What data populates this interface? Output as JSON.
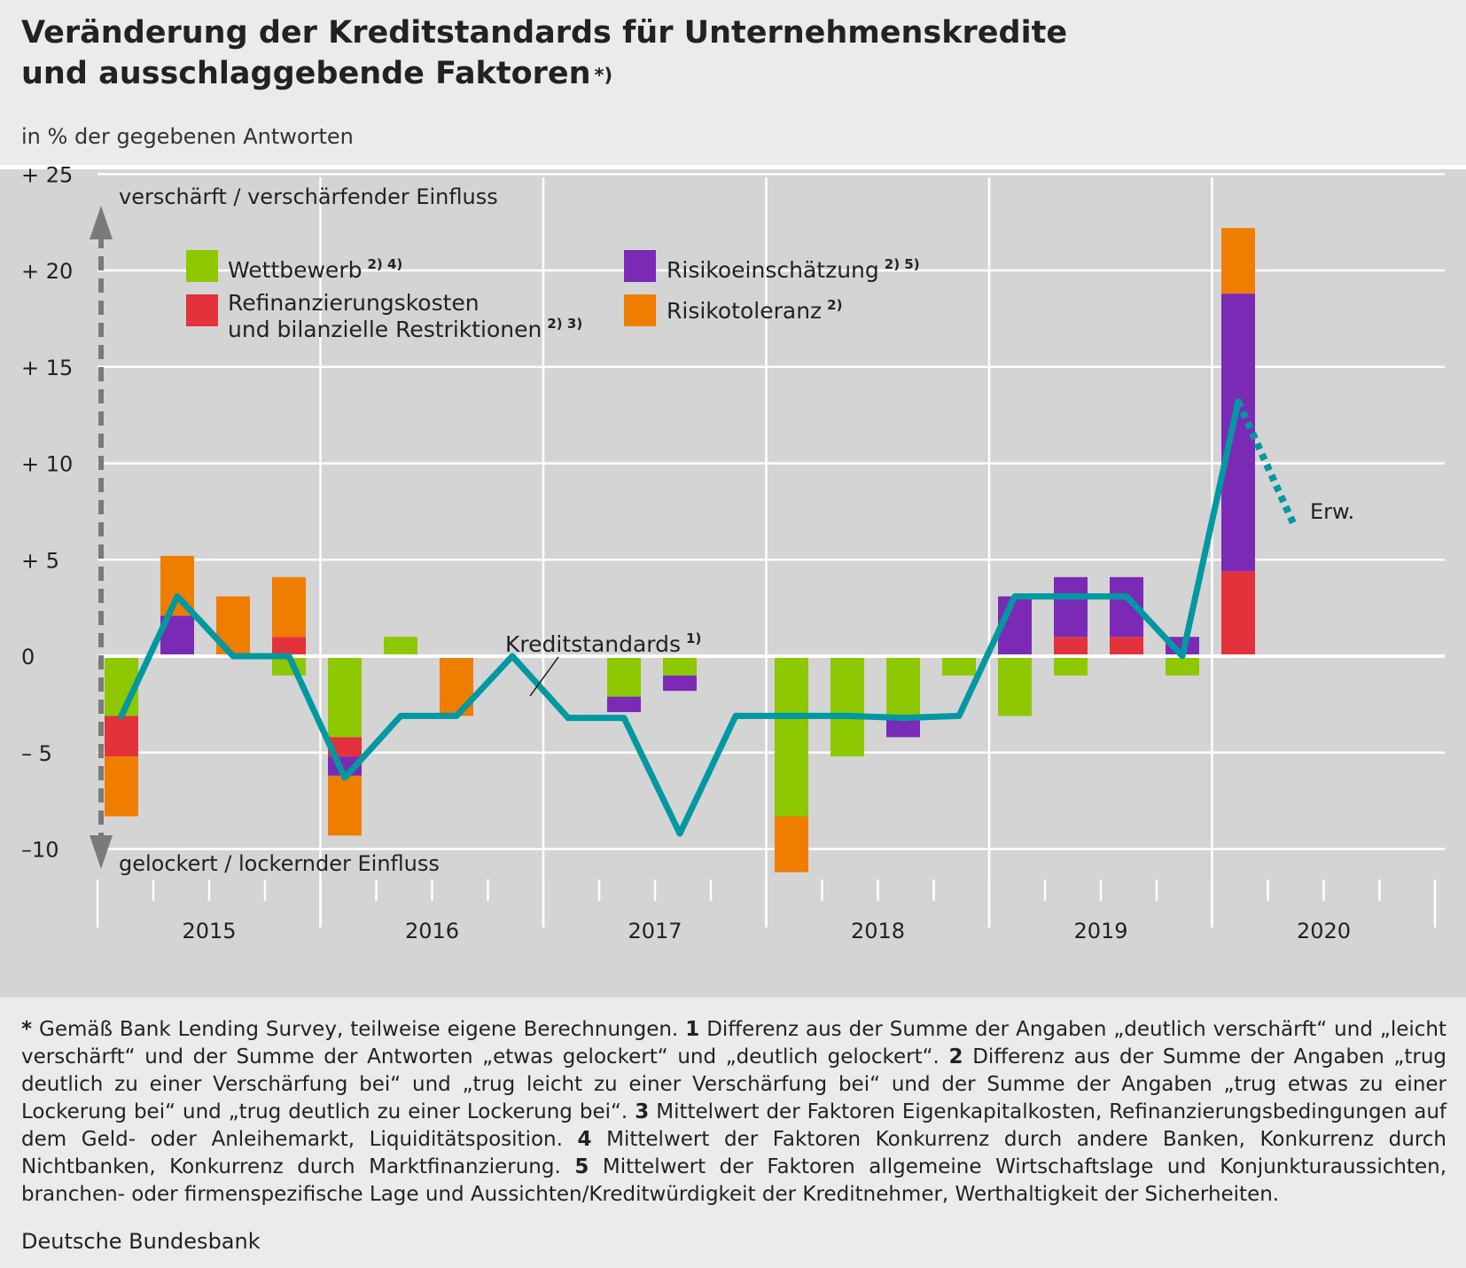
{
  "header": {
    "title_line1": "Veränderung der Kreditstandards für Unternehmenskredite",
    "title_line2": "und ausschlaggebende Faktoren",
    "title_mark": "*)",
    "subtitle": "in % der gegebenen Antworten"
  },
  "chart_data": {
    "type": "bar",
    "title": "Veränderung der Kreditstandards für Unternehmenskredite und ausschlaggebende Faktoren",
    "ylabel": "in % der gegebenen Antworten",
    "ylim": [
      -10,
      25
    ],
    "yticks": [
      25,
      20,
      15,
      10,
      5,
      0,
      -5,
      -10
    ],
    "ytick_labels": [
      "+ 25",
      "+ 20",
      "+ 15",
      "+ 10",
      "+  5",
      "0",
      "–  5",
      "–10"
    ],
    "grid": true,
    "direction_labels": {
      "up": "verschärft / verschärfender Einfluss",
      "down": "gelockert / lockernder Einfluss"
    },
    "year_labels": [
      "2015",
      "2016",
      "2017",
      "2018",
      "2019",
      "2020"
    ],
    "legend_placement": "top-left",
    "quarters": [
      "2015 Q1",
      "2015 Q2",
      "2015 Q3",
      "2015 Q4",
      "2016 Q1",
      "2016 Q2",
      "2016 Q3",
      "2016 Q4",
      "2017 Q1",
      "2017 Q2",
      "2017 Q3",
      "2017 Q4",
      "2018 Q1",
      "2018 Q2",
      "2018 Q3",
      "2018 Q4",
      "2019 Q1",
      "2019 Q2",
      "2019 Q3",
      "2019 Q4",
      "2020 Q1",
      "2020 Q2"
    ],
    "series": [
      {
        "name": "Wettbewerb",
        "sup": "2) 4)",
        "color": "#8dc800",
        "values": [
          -3.1,
          0,
          0,
          -1.0,
          -4.2,
          1.0,
          0,
          0,
          0,
          -2.1,
          -1.0,
          0,
          -8.3,
          -5.2,
          -3.2,
          -1.0,
          -3.1,
          -1.0,
          0,
          -1.0,
          0,
          0
        ]
      },
      {
        "name": "Refinanzierungskosten und bilanzielle Restriktionen",
        "sup": "2) 3)",
        "color": "#e3323b",
        "values": [
          -2.1,
          0,
          0,
          1.0,
          -1.0,
          0,
          0,
          0,
          0,
          0,
          0,
          0,
          0,
          0,
          0,
          0,
          0,
          1.0,
          1.0,
          0,
          4.4,
          0
        ]
      },
      {
        "name": "Risikoeinschätzung",
        "sup": "2) 5)",
        "color": "#7b2ab5",
        "values": [
          0,
          2.1,
          0,
          0,
          -1.0,
          0,
          0,
          0,
          0,
          -0.8,
          -0.8,
          0,
          0,
          0,
          -1.0,
          0,
          3.1,
          3.1,
          3.1,
          1.0,
          14.4,
          0
        ]
      },
      {
        "name": "Risikotoleranz",
        "sup": "2)",
        "color": "#ef7d00",
        "values": [
          -3.1,
          3.1,
          3.1,
          3.1,
          -3.1,
          0,
          -3.1,
          0,
          0,
          0,
          0,
          0,
          -2.9,
          0,
          0,
          0,
          0,
          0,
          0,
          0,
          3.4,
          0
        ]
      },
      {
        "name": "Kreditstandards",
        "sup": "1)",
        "type": "line",
        "color": "#0098a1",
        "values": [
          -3.1,
          3.1,
          0,
          0,
          -6.3,
          -3.1,
          -3.1,
          0,
          -3.2,
          -3.2,
          -9.2,
          -3.1,
          -3.1,
          -3.1,
          -3.2,
          -3.1,
          3.1,
          3.1,
          3.1,
          0,
          13.2,
          null
        ]
      },
      {
        "name": "Erw.",
        "type": "line-dotted",
        "color": "#0098a1",
        "values": [
          null,
          null,
          null,
          null,
          null,
          null,
          null,
          null,
          null,
          null,
          null,
          null,
          null,
          null,
          null,
          null,
          null,
          null,
          null,
          null,
          13.2,
          6.8
        ]
      }
    ],
    "annotations": [
      "Kreditstandards",
      "Erw."
    ]
  },
  "legend": {
    "wettbewerb": {
      "label": "Wettbewerb",
      "sup": "2) 4)"
    },
    "refinanzierung": {
      "label1": "Refinanzierungskosten",
      "label2": "und bilanzielle Restriktionen",
      "sup": "2) 3)"
    },
    "risikoeinschaetzung": {
      "label": "Risikoeinschätzung",
      "sup": "2) 5)"
    },
    "risikotoleranz": {
      "label": "Risikotoleranz",
      "sup": "2)"
    }
  },
  "footnotes": {
    "star": "*",
    "star_text": "Gemäß Bank Lending Survey, teilweise eigene Berechnungen.",
    "n1": "1",
    "n1_text": "Differenz aus der Summe der Angaben „deutlich verschärft“ und „leicht verschärft“ und der Summe der Antworten „etwas gelockert“ und „deutlich gelockert“.",
    "n2": "2",
    "n2_text": "Differenz aus der Summe der Angaben „trug deutlich zu einer Verschärfung bei“ und „trug leicht zu einer Verschärfung bei“ und der Summe der Angaben „trug etwas zu einer Lockerung bei“ und „trug deutlich zu einer Lockerung bei“.",
    "n3": "3",
    "n3_text": "Mittelwert der Faktoren Eigenkapitalkosten, Refinanzierungsbedingungen auf dem Geld- oder Anleihemarkt, Liquiditätsposition.",
    "n4": "4",
    "n4_text": "Mittelwert der Faktoren Konkurrenz durch andere Banken, Konkurrenz durch Nichtbanken, Konkurrenz durch Marktfinanzierung.",
    "n5": "5",
    "n5_text": "Mittelwert der Faktoren allgemeine Wirtschaftslage und Konjunkturaussichten, branchen- oder firmenspezifische Lage und Aussichten/Kreditwürdigkeit der Kreditnehmer, Werthaltigkeit der Sicherheiten."
  },
  "source": "Deutsche Bundesbank"
}
